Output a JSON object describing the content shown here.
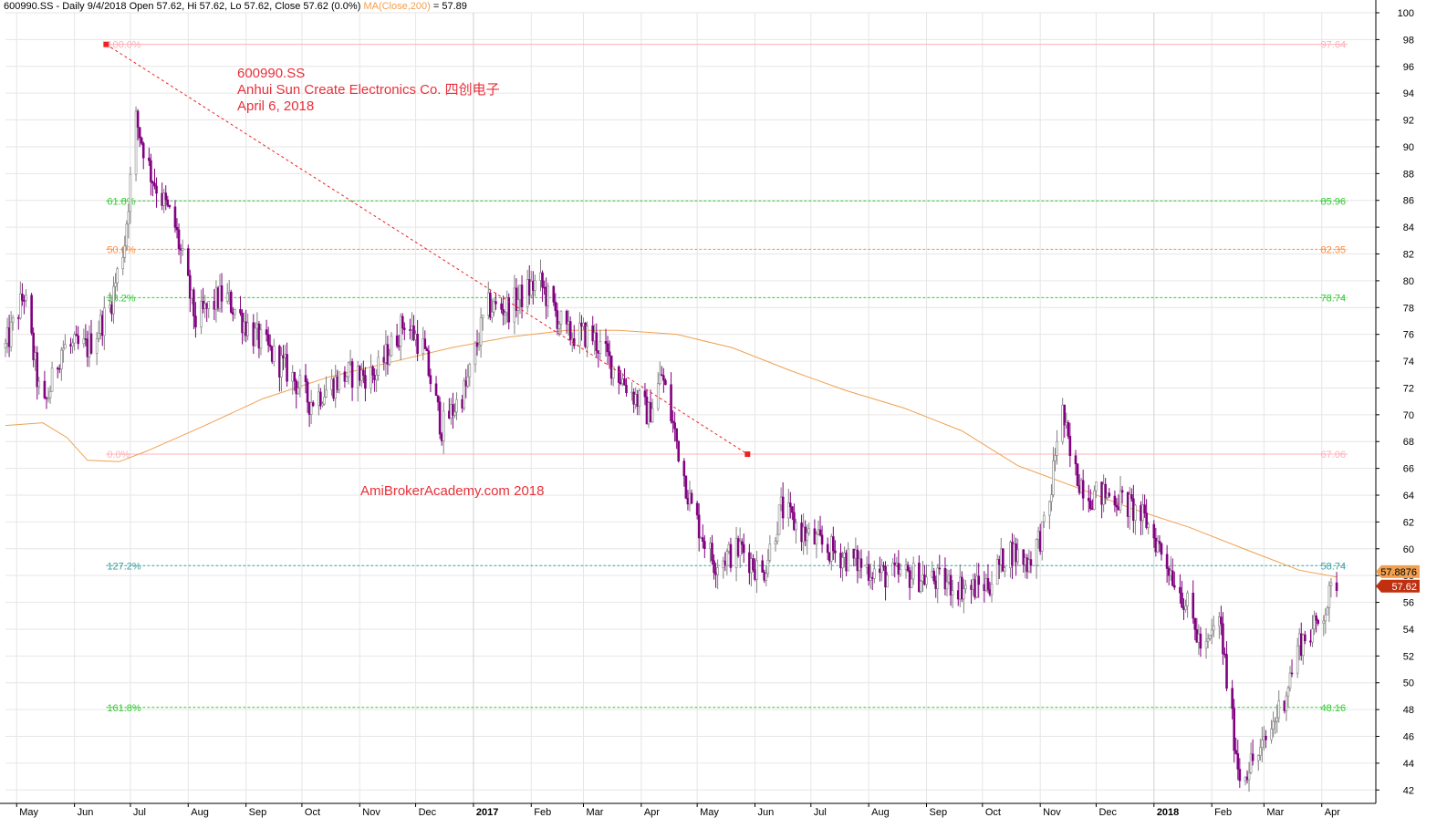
{
  "header": {
    "quote": "600990.SS - Daily 9/4/2018 Open 57.62, Hi 57.62, Lo 57.62, Close 57.62 (0.0%)",
    "ma_label": "MA(Close,200)",
    "ma_value": "= 57.89"
  },
  "annotations": {
    "ticker": "600990.SS",
    "company": "Anhui Sun Create Electronics Co.  四创电子",
    "date": "April 6, 2018",
    "watermark": "AmiBrokerAcademy.com  2018"
  },
  "colors": {
    "bull_candle": "#808080",
    "bear_candle": "#800080",
    "ma_line": "#f0a050",
    "fib_green": "#33cc33",
    "fib_orange": "#ff8c40",
    "fib_pink": "#ffb0b8",
    "fib_teal": "#40a0a0",
    "trendline": "#ee2222",
    "annotation_text": "#e8303a",
    "price_badge": "#c03010",
    "ma_badge": "#f0a050"
  },
  "chart_data": {
    "type": "candlestick",
    "title": "600990.SS",
    "y_axis": {
      "min": 41,
      "max": 100,
      "ticks": [
        42,
        44,
        46,
        48,
        50,
        52,
        54,
        56,
        58,
        60,
        62,
        64,
        66,
        68,
        70,
        72,
        74,
        76,
        78,
        80,
        82,
        84,
        86,
        88,
        90,
        92,
        94,
        96,
        98,
        100
      ],
      "position": "right"
    },
    "x_axis": {
      "months": [
        {
          "label": "May",
          "date": "2016-05-01",
          "bold": false
        },
        {
          "label": "Jun",
          "date": "2016-06-01",
          "bold": false
        },
        {
          "label": "Jul",
          "date": "2016-07-01",
          "bold": false
        },
        {
          "label": "Aug",
          "date": "2016-08-01",
          "bold": false
        },
        {
          "label": "Sep",
          "date": "2016-09-01",
          "bold": false
        },
        {
          "label": "Oct",
          "date": "2016-10-01",
          "bold": false
        },
        {
          "label": "Nov",
          "date": "2016-11-01",
          "bold": false
        },
        {
          "label": "Dec",
          "date": "2016-12-01",
          "bold": false
        },
        {
          "label": "2017",
          "date": "2017-01-01",
          "bold": true
        },
        {
          "label": "Feb",
          "date": "2017-02-01",
          "bold": false
        },
        {
          "label": "Mar",
          "date": "2017-03-01",
          "bold": false
        },
        {
          "label": "Apr",
          "date": "2017-04-01",
          "bold": false
        },
        {
          "label": "May",
          "date": "2017-05-01",
          "bold": false
        },
        {
          "label": "Jun",
          "date": "2017-06-01",
          "bold": false
        },
        {
          "label": "Jul",
          "date": "2017-07-01",
          "bold": false
        },
        {
          "label": "Aug",
          "date": "2017-08-01",
          "bold": false
        },
        {
          "label": "Sep",
          "date": "2017-09-01",
          "bold": false
        },
        {
          "label": "Oct",
          "date": "2017-10-01",
          "bold": false
        },
        {
          "label": "Nov",
          "date": "2017-11-01",
          "bold": false
        },
        {
          "label": "Dec",
          "date": "2017-12-01",
          "bold": false
        },
        {
          "label": "2018",
          "date": "2018-01-01",
          "bold": true
        },
        {
          "label": "Feb",
          "date": "2018-02-01",
          "bold": false
        },
        {
          "label": "Mar",
          "date": "2018-03-01",
          "bold": false
        },
        {
          "label": "Apr",
          "date": "2018-04-01",
          "bold": false
        }
      ],
      "range": [
        "2016-04-25",
        "2018-04-30"
      ]
    },
    "price_path": [
      [
        "2016-04-25",
        75
      ],
      [
        "2016-05-05",
        79
      ],
      [
        "2016-05-15",
        70
      ],
      [
        "2016-05-25",
        75
      ],
      [
        "2016-06-08",
        75
      ],
      [
        "2016-06-20",
        78
      ],
      [
        "2016-06-28",
        83
      ],
      [
        "2016-07-04",
        92
      ],
      [
        "2016-07-12",
        88
      ],
      [
        "2016-07-25",
        84
      ],
      [
        "2016-08-05",
        77
      ],
      [
        "2016-08-20",
        79
      ],
      [
        "2016-09-05",
        76
      ],
      [
        "2016-09-25",
        73
      ],
      [
        "2016-10-05",
        71
      ],
      [
        "2016-10-25",
        73
      ],
      [
        "2016-11-10",
        73
      ],
      [
        "2016-11-25",
        77
      ],
      [
        "2016-12-05",
        75
      ],
      [
        "2016-12-15",
        69
      ],
      [
        "2016-12-28",
        72
      ],
      [
        "2017-01-08",
        78
      ],
      [
        "2017-01-20",
        78
      ],
      [
        "2017-02-05",
        80
      ],
      [
        "2017-02-20",
        76
      ],
      [
        "2017-03-05",
        76
      ],
      [
        "2017-03-20",
        73
      ],
      [
        "2017-04-05",
        70
      ],
      [
        "2017-04-12",
        73
      ],
      [
        "2017-04-20",
        68
      ],
      [
        "2017-04-28",
        63
      ],
      [
        "2017-05-10",
        59
      ],
      [
        "2017-05-25",
        60
      ],
      [
        "2017-06-05",
        58
      ],
      [
        "2017-06-15",
        63
      ],
      [
        "2017-06-28",
        61
      ],
      [
        "2017-07-10",
        60
      ],
      [
        "2017-07-25",
        59
      ],
      [
        "2017-08-10",
        58
      ],
      [
        "2017-08-25",
        58
      ],
      [
        "2017-09-10",
        57.5
      ],
      [
        "2017-09-25",
        57
      ],
      [
        "2017-10-05",
        57.5
      ],
      [
        "2017-10-15",
        60
      ],
      [
        "2017-10-25",
        59
      ],
      [
        "2017-11-05",
        62
      ],
      [
        "2017-11-12",
        71
      ],
      [
        "2017-11-18",
        66
      ],
      [
        "2017-11-28",
        64
      ],
      [
        "2017-12-10",
        64
      ],
      [
        "2017-12-20",
        63
      ],
      [
        "2017-12-28",
        62
      ],
      [
        "2018-01-08",
        59
      ],
      [
        "2018-01-18",
        56
      ],
      [
        "2018-01-28",
        52
      ],
      [
        "2018-02-05",
        55
      ],
      [
        "2018-02-10",
        49
      ],
      [
        "2018-02-16",
        43
      ],
      [
        "2018-02-28",
        45
      ],
      [
        "2018-03-12",
        49
      ],
      [
        "2018-03-20",
        53
      ],
      [
        "2018-03-28",
        54
      ],
      [
        "2018-04-04",
        56
      ],
      [
        "2018-04-09",
        57.62
      ]
    ],
    "ma_path": [
      [
        "2016-04-25",
        69.2
      ],
      [
        "2016-05-15",
        69.4
      ],
      [
        "2016-05-28",
        68.3
      ],
      [
        "2016-06-08",
        66.6
      ],
      [
        "2016-06-25",
        66.5
      ],
      [
        "2016-07-10",
        67.3
      ],
      [
        "2016-08-10",
        69.2
      ],
      [
        "2016-09-10",
        71.2
      ],
      [
        "2016-10-15",
        72.8
      ],
      [
        "2016-11-20",
        74.0
      ],
      [
        "2016-12-20",
        75.0
      ],
      [
        "2017-01-20",
        75.8
      ],
      [
        "2017-02-20",
        76.3
      ],
      [
        "2017-03-20",
        76.3
      ],
      [
        "2017-04-20",
        76.0
      ],
      [
        "2017-05-20",
        75.0
      ],
      [
        "2017-06-20",
        73.3
      ],
      [
        "2017-07-20",
        71.8
      ],
      [
        "2017-08-20",
        70.5
      ],
      [
        "2017-09-20",
        68.8
      ],
      [
        "2017-10-20",
        66.2
      ],
      [
        "2017-11-20",
        64.6
      ],
      [
        "2017-12-20",
        63.0
      ],
      [
        "2018-01-20",
        61.6
      ],
      [
        "2018-02-20",
        59.9
      ],
      [
        "2018-03-20",
        58.4
      ],
      [
        "2018-04-09",
        57.89
      ]
    ],
    "fib_levels": [
      {
        "label": "100.0%",
        "value": 97.64,
        "value_label": "97.64",
        "color": "#ffb0b8",
        "style": "solid"
      },
      {
        "label": "61.8%",
        "value": 85.96,
        "value_label": "85.96",
        "color": "#33cc33",
        "style": "dashed"
      },
      {
        "label": "50.0%",
        "value": 82.35,
        "value_label": "82.35",
        "color": "#ff8c40",
        "style": "dashed"
      },
      {
        "label": "38.2%",
        "value": 78.74,
        "value_label": "78.74",
        "color": "#33cc33",
        "style": "dashed"
      },
      {
        "label": "0.0%",
        "value": 67.06,
        "value_label": "67.06",
        "color": "#ffb0b8",
        "style": "solid"
      },
      {
        "label": "127.2%",
        "value": 58.74,
        "value_label": "58.74",
        "color": "#40a0a0",
        "style": "dashed"
      },
      {
        "label": "161.8%",
        "value": 48.16,
        "value_label": "48.16",
        "color": "#33cc33",
        "style": "dashed"
      }
    ],
    "trendline": {
      "start": [
        "2016-06-18",
        97.64
      ],
      "end": [
        "2017-05-28",
        67.06
      ]
    },
    "badges": [
      {
        "label": "57.8876",
        "value": 57.8876,
        "kind": "ma"
      },
      {
        "label": "57.62",
        "value": 57.62,
        "kind": "price"
      }
    ]
  }
}
